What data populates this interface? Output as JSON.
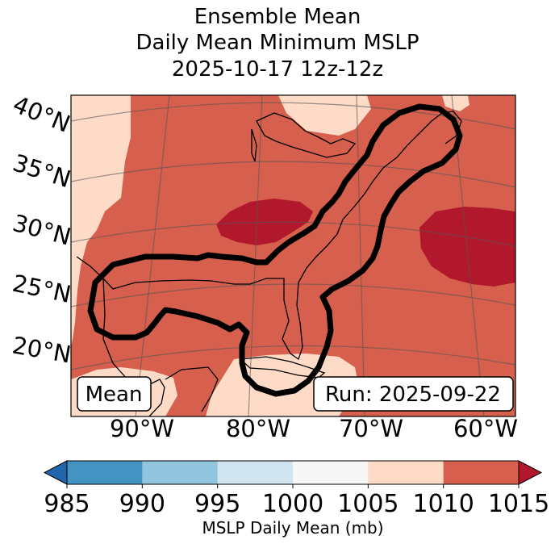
{
  "title": {
    "line1": "Ensemble Mean",
    "line2": "Daily Mean Minimum MSLP",
    "line3": "2025-10-17 12z-12z"
  },
  "map": {
    "lat_labels": [
      "40°N",
      "35°N",
      "30°N",
      "25°N",
      "20°N"
    ],
    "lon_labels": [
      "90°W",
      "80°W",
      "70°W",
      "60°W"
    ],
    "badge_left": "Mean",
    "badge_right": "Run: 2025-09-22"
  },
  "colorbar": {
    "ticks": [
      "985",
      "990",
      "995",
      "1000",
      "1005",
      "1010",
      "1015"
    ],
    "label": "MSLP Daily Mean (mb)",
    "colors": [
      "#2166ac",
      "#4393c3",
      "#92c5de",
      "#d1e5f0",
      "#f7f7f7",
      "#fddbc7",
      "#d6604d",
      "#b2182b"
    ]
  },
  "colors": {
    "low_1005": "#fddbc7",
    "mid_1010": "#d6604d",
    "high_1015": "#b2182b",
    "contour": "#000000"
  }
}
